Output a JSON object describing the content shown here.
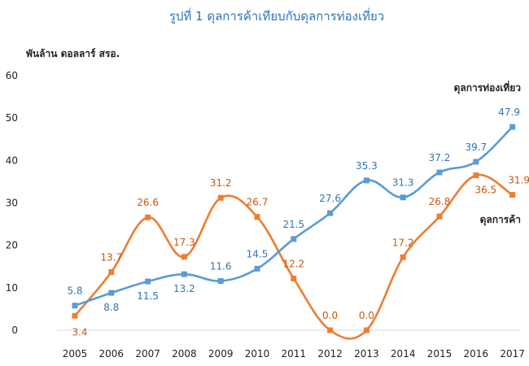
{
  "chart_data": {
    "type": "line",
    "title": "รูปที่ 1 ดุลการค้าเทียบกับดุลการท่องเที่ยว",
    "ylabel": "พันล้าน ดอลลาร์ สรอ.",
    "xlabel": "",
    "ylim": [
      0,
      60
    ],
    "yticks": [
      "0",
      "10",
      "20",
      "30",
      "40",
      "50",
      "60"
    ],
    "categories": [
      "2005",
      "2006",
      "2007",
      "2008",
      "2009",
      "2010",
      "2011",
      "2012",
      "2013",
      "2014",
      "2015",
      "2016",
      "2017"
    ],
    "series": [
      {
        "name": "ดุลการท่องเที่ยว",
        "color": "#5b9bd5",
        "values": [
          5.8,
          8.8,
          11.5,
          13.2,
          11.6,
          14.5,
          21.5,
          27.6,
          35.3,
          31.3,
          37.2,
          39.7,
          47.9
        ],
        "labels": [
          "5.8",
          "8.8",
          "11.5",
          "13.2",
          "11.6",
          "14.5",
          "21.5",
          "27.6",
          "35.3",
          "31.3",
          "37.2",
          "39.7",
          "47.9"
        ]
      },
      {
        "name": "ดุลการค้า",
        "color": "#ed7d31",
        "values": [
          3.4,
          13.7,
          26.6,
          17.3,
          31.2,
          26.7,
          12.2,
          0.0,
          0.0,
          17.2,
          26.8,
          36.5,
          31.9
        ],
        "labels": [
          "3.4",
          "13.7",
          "26.6",
          "17.3",
          "31.2",
          "26.7",
          "12.2",
          "0.0",
          "0.0",
          "17.2",
          "26.8",
          "36.5",
          "31.9"
        ]
      }
    ],
    "grid": false,
    "legend": "inline labels at right"
  }
}
